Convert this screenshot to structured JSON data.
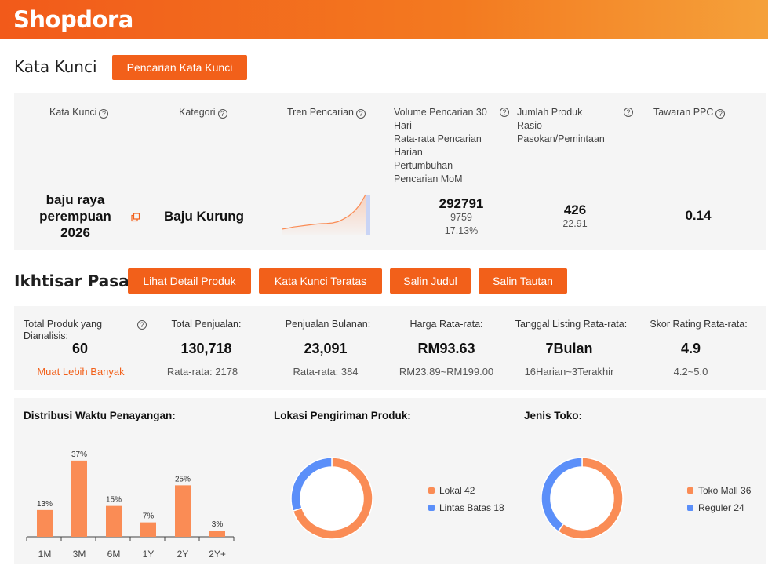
{
  "brand": {
    "name": "Shopdora"
  },
  "keyword_section": {
    "title": "Kata Kunci",
    "search_button": "Pencarian Kata Kunci",
    "headers": {
      "keyword": "Kata Kunci",
      "category": "Kategori",
      "trend": "Tren Pencarian",
      "volume_lines": [
        "Volume Pencarian 30",
        "Hari",
        "Rata-rata Pencarian",
        "Harian",
        "Pertumbuhan",
        "Pencarian MoM"
      ],
      "products_lines": [
        "Jumlah Produk",
        "Rasio",
        "Pasokan/Pemintaan"
      ],
      "ppc": "Tawaran PPC"
    },
    "row": {
      "keyword_lines": [
        "baju raya",
        "perempuan",
        "2026"
      ],
      "category": "Baju Kurung",
      "volume": "292791",
      "daily_avg": "9759",
      "mom_growth": "17.13%",
      "products": "426",
      "ratio": "22.91",
      "ppc": "0.14"
    },
    "trend": [
      2,
      2.4,
      2.9,
      3.2,
      3.5,
      3.8,
      4.1,
      4.3,
      4.4,
      4.6,
      5.1,
      6.2,
      7.6,
      9.6,
      12.3,
      16.5
    ]
  },
  "market_section": {
    "title": "Ikhtisar Pasar",
    "buttons": [
      "Lihat Detail Produk",
      "Kata Kunci Teratas",
      "Salin Judul",
      "Salin Tautan"
    ],
    "metrics": [
      {
        "label_lines": [
          "Total Produk yang",
          "Dianalisis:"
        ],
        "value": "60",
        "sub": "Muat Lebih Banyak"
      },
      {
        "label_lines": [
          "Total Penjualan:"
        ],
        "value": "130,718",
        "sub": "Rata-rata: 2178"
      },
      {
        "label_lines": [
          "Penjualan Bulanan:"
        ],
        "value": "23,091",
        "sub": "Rata-rata: 384"
      },
      {
        "label_lines": [
          "Harga Rata-rata:"
        ],
        "value": "RM93.63",
        "sub": "RM23.89~RM199.00"
      },
      {
        "label_lines": [
          "Tanggal Listing Rata-rata:"
        ],
        "value": "7Bulan",
        "sub": "16Harian~3Terakhir"
      },
      {
        "label_lines": [
          "Skor Rating Rata-rata:"
        ],
        "value": "4.9",
        "sub": "4.2~5.0"
      }
    ]
  },
  "colors": {
    "accent": "#f2601a",
    "bar": "#fa8c55",
    "orange": "#fa8c55",
    "blue": "#5b8ff9"
  },
  "chart_data": [
    {
      "type": "bar",
      "title": "Distribusi Waktu Penayangan:",
      "categories": [
        "1M",
        "3M",
        "6M",
        "1Y",
        "2Y",
        "2Y+"
      ],
      "values": [
        13,
        37,
        15,
        7,
        25,
        3
      ],
      "value_labels": [
        "13%",
        "37%",
        "15%",
        "7%",
        "25%",
        "3%"
      ],
      "ylim": [
        0,
        40
      ]
    },
    {
      "type": "pie",
      "title": "Lokasi Pengiriman Produk:",
      "slices": [
        {
          "label": "Lokal 42",
          "value": 42,
          "color": "#fa8c55"
        },
        {
          "label": "Lintas Batas 18",
          "value": 18,
          "color": "#5b8ff9"
        }
      ]
    },
    {
      "type": "pie",
      "title": "Jenis Toko:",
      "slices": [
        {
          "label": "Toko Mall 36",
          "value": 36,
          "color": "#fa8c55"
        },
        {
          "label": "Reguler 24",
          "value": 24,
          "color": "#5b8ff9"
        }
      ]
    }
  ]
}
